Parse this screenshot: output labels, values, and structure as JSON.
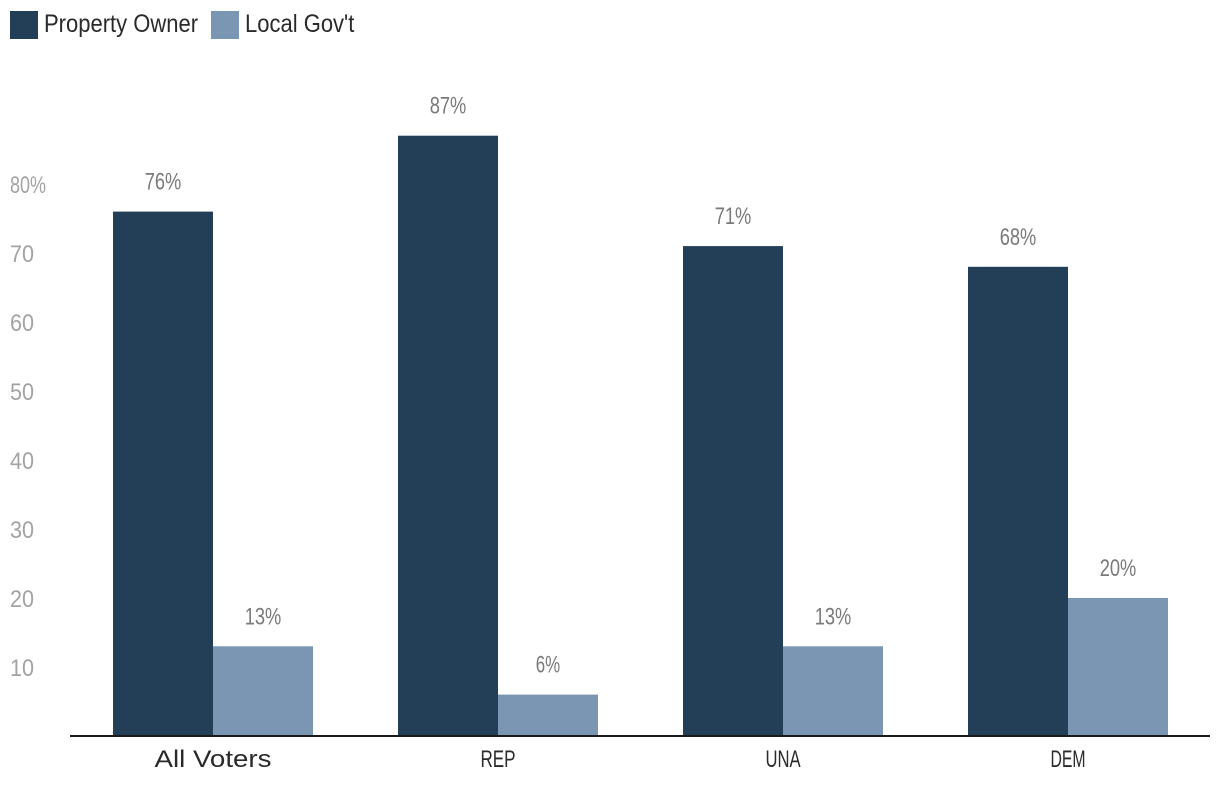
{
  "chart_data": {
    "type": "bar",
    "categories": [
      "All Voters",
      "REP",
      "UNA",
      "DEM"
    ],
    "series": [
      {
        "name": "Property Owner",
        "values": [
          76,
          87,
          71,
          68
        ],
        "labels": [
          "76%",
          "87%",
          "71%",
          "68%"
        ],
        "color": "#233f58"
      },
      {
        "name": "Local Gov't",
        "values": [
          13,
          6,
          13,
          20
        ],
        "labels": [
          "13%",
          "6%",
          "13%",
          "20%"
        ],
        "color": "#7a96b3"
      }
    ],
    "y_ticks": [
      10,
      20,
      30,
      40,
      50,
      60,
      70,
      80
    ],
    "y_tick_labels": [
      "10",
      "20",
      "30",
      "40",
      "50",
      "60",
      "70",
      "80%"
    ],
    "ylim": [
      0,
      87
    ],
    "legend_position": "top-left",
    "grid": false
  }
}
